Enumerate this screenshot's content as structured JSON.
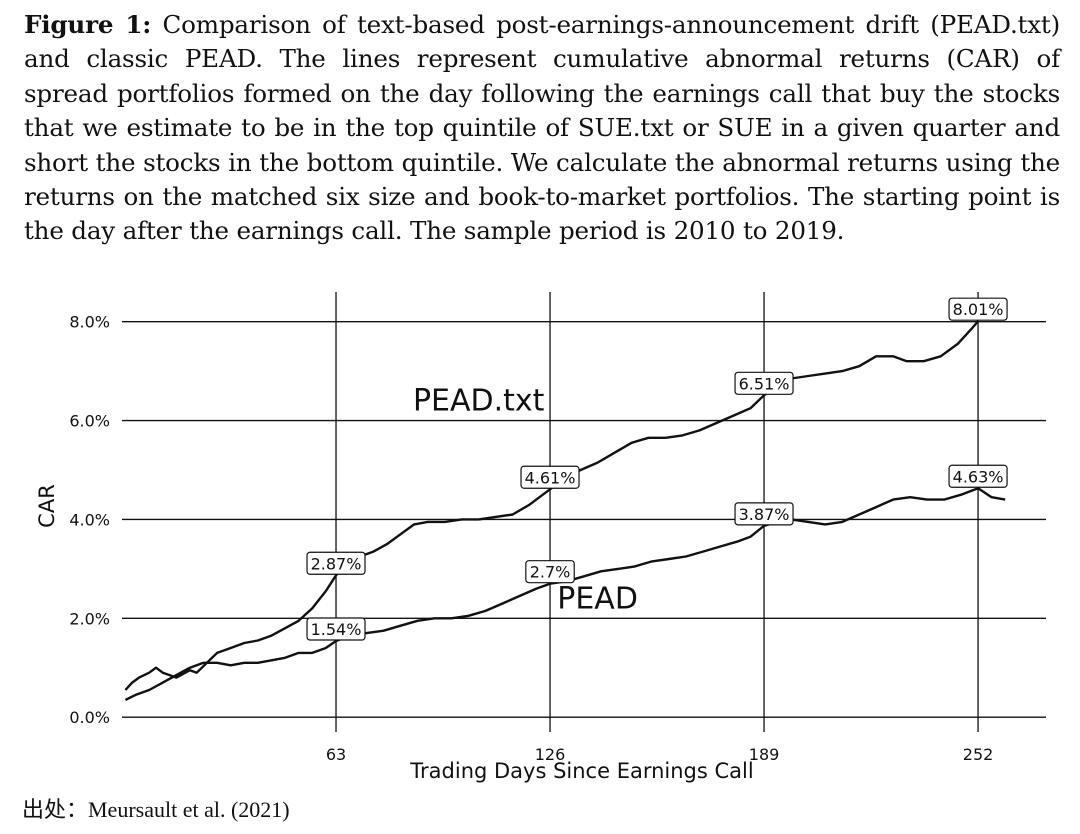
{
  "caption": {
    "label": "Figure 1:",
    "text": "Comparison of text-based post-earnings-announcement drift (PEAD.txt) and classic PEAD. The lines represent cumulative abnormal returns (CAR) of spread portfolios formed on the day following the earnings call that buy the stocks that we estimate to be in the top quintile of SUE.txt or SUE in a given quarter and short the stocks in the bottom quintile. We calculate the abnormal returns using the returns on the matched six size and book-to-market portfolios. The starting point is the day after the earnings call. The sample period is 2010 to 2019."
  },
  "source": "出处：Meursault et al. (2021)",
  "chart_data": {
    "type": "line",
    "xlabel": "Trading Days Since Earnings Call",
    "ylabel": "CAR",
    "xlim": [
      0,
      272
    ],
    "ylim": [
      -0.3,
      8.6
    ],
    "x_ticks": [
      63,
      126,
      189,
      252
    ],
    "x_tick_labels": [
      "63",
      "126",
      "189",
      "252"
    ],
    "y_ticks": [
      0,
      2,
      4,
      6,
      8
    ],
    "y_tick_labels": [
      "0.0%",
      "2.0%",
      "4.0%",
      "6.0%",
      "8.0%"
    ],
    "grid": true,
    "series": [
      {
        "name": "PEAD.txt",
        "label_x": 105,
        "label_y": 6.2,
        "x": [
          1,
          3,
          5,
          8,
          10,
          12,
          14,
          16,
          20,
          22,
          25,
          28,
          32,
          36,
          40,
          44,
          48,
          52,
          56,
          60,
          63,
          66,
          70,
          74,
          78,
          82,
          86,
          90,
          95,
          100,
          105,
          110,
          115,
          120,
          126,
          130,
          135,
          140,
          145,
          150,
          155,
          160,
          165,
          170,
          175,
          180,
          185,
          189,
          193,
          197,
          202,
          207,
          212,
          217,
          222,
          227,
          231,
          236,
          241,
          246,
          250,
          252
        ],
        "values": [
          0.55,
          0.7,
          0.8,
          0.9,
          1.0,
          0.9,
          0.85,
          0.8,
          0.95,
          0.9,
          1.1,
          1.3,
          1.4,
          1.5,
          1.55,
          1.65,
          1.8,
          1.95,
          2.2,
          2.55,
          2.87,
          3.1,
          3.25,
          3.35,
          3.5,
          3.7,
          3.9,
          3.95,
          3.95,
          4.0,
          4.0,
          4.05,
          4.1,
          4.3,
          4.61,
          4.8,
          5.0,
          5.15,
          5.35,
          5.55,
          5.65,
          5.65,
          5.7,
          5.8,
          5.95,
          6.1,
          6.25,
          6.51,
          6.7,
          6.85,
          6.9,
          6.95,
          7.0,
          7.1,
          7.3,
          7.3,
          7.2,
          7.2,
          7.3,
          7.55,
          7.85,
          8.01
        ]
      },
      {
        "name": "PEAD",
        "label_x": 140,
        "label_y": 2.2,
        "x": [
          1,
          4,
          8,
          12,
          16,
          20,
          24,
          28,
          32,
          36,
          40,
          44,
          48,
          52,
          56,
          60,
          63,
          67,
          72,
          77,
          82,
          87,
          92,
          97,
          102,
          107,
          112,
          117,
          122,
          126,
          131,
          136,
          141,
          146,
          151,
          156,
          161,
          166,
          171,
          176,
          181,
          185,
          189,
          193,
          197,
          202,
          207,
          212,
          217,
          222,
          227,
          232,
          237,
          242,
          247,
          252,
          256,
          260
        ],
        "values": [
          0.35,
          0.45,
          0.55,
          0.7,
          0.85,
          1.0,
          1.1,
          1.1,
          1.05,
          1.1,
          1.1,
          1.15,
          1.2,
          1.3,
          1.3,
          1.4,
          1.54,
          1.65,
          1.7,
          1.75,
          1.85,
          1.95,
          2.0,
          2.0,
          2.05,
          2.15,
          2.3,
          2.45,
          2.6,
          2.7,
          2.75,
          2.85,
          2.95,
          3.0,
          3.05,
          3.15,
          3.2,
          3.25,
          3.35,
          3.45,
          3.55,
          3.65,
          3.87,
          3.95,
          4.0,
          3.95,
          3.9,
          3.95,
          4.1,
          4.25,
          4.4,
          4.45,
          4.4,
          4.4,
          4.5,
          4.63,
          4.45,
          4.4
        ]
      }
    ],
    "data_labels": [
      {
        "series": "PEAD.txt",
        "x": 63,
        "y": 2.87,
        "text": "2.87%"
      },
      {
        "series": "PEAD.txt",
        "x": 126,
        "y": 4.61,
        "text": "4.61%"
      },
      {
        "series": "PEAD.txt",
        "x": 189,
        "y": 6.51,
        "text": "6.51%"
      },
      {
        "series": "PEAD.txt",
        "x": 252,
        "y": 8.01,
        "text": "8.01%"
      },
      {
        "series": "PEAD",
        "x": 63,
        "y": 1.54,
        "text": "1.54%"
      },
      {
        "series": "PEAD",
        "x": 126,
        "y": 2.7,
        "text": "2.7%"
      },
      {
        "series": "PEAD",
        "x": 189,
        "y": 3.87,
        "text": "3.87%"
      },
      {
        "series": "PEAD",
        "x": 252,
        "y": 4.63,
        "text": "4.63%"
      }
    ]
  }
}
